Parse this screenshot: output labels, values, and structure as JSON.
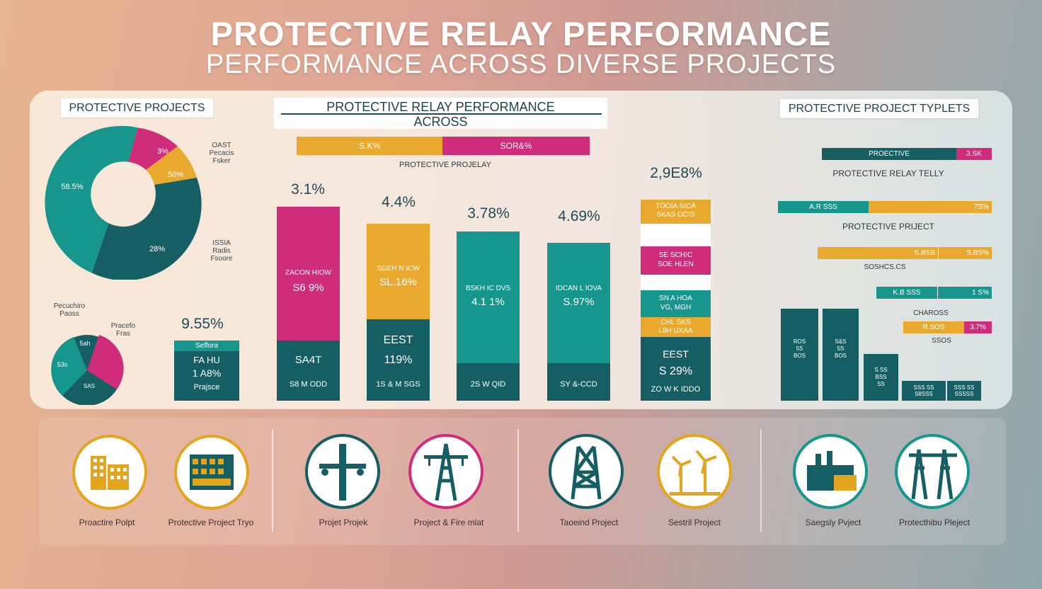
{
  "title": "PROTECTIVE RELAY PERFORMANCE",
  "subtitle": "PERFORMANCE ACROSS DIVERSE PROJECTS",
  "colors": {
    "teal": "#16968c",
    "dark_teal": "#155e64",
    "magenta": "#cf2d7b",
    "mustard": "#e8a92e"
  },
  "left": {
    "header": "PROTECTIVE PROJECTS",
    "donut_labels": {
      "slice1": "58.5%",
      "slice2": "3%",
      "slice3": "50%",
      "slice4": "28%"
    },
    "legend_top": [
      "OAST",
      "Pecacis",
      "Fsker"
    ],
    "legend_bottom": [
      "ISSIA",
      "Radis",
      "Fsoore"
    ],
    "pie_label_left": [
      "Pecuchiro",
      "Paoss"
    ],
    "pie_label_right": [
      "Pracefo",
      "Fras"
    ],
    "small_pie_labels": {
      "slice1": "5ah",
      "slice2": "53s",
      "slice3": "SAS"
    },
    "small_card": {
      "value": "9.55%",
      "head": "Seffora",
      "line1": "FA HU",
      "line2": "1 A8%",
      "footer": "Prajsce"
    }
  },
  "middle": {
    "header_line1": "PROTECTIVE RELAY PERFORMANCE",
    "header_line2": "ACROSS",
    "strip_left": "S.K%",
    "strip_right": "SOR&%",
    "strip_caption": "PROTECTIVE PROJELAY",
    "bars": [
      {
        "value_label": "3.1%",
        "color": "magenta",
        "mid1": "ZACON HIOW",
        "mid2": "S6 9%",
        "bottom1": "SA4T",
        "bottom2": "",
        "foot": "S8 M ODD"
      },
      {
        "value_label": "4.4%",
        "color": "mustard",
        "mid1": "SGEH N ICW",
        "mid2": "SL.16%",
        "bottom1": "EEST",
        "bottom2": "119%",
        "foot": "1S & M SGS"
      },
      {
        "value_label": "3.78%",
        "color": "teal",
        "mid1": "BSKH IC DVS",
        "mid2": "4.1 1%",
        "bottom1": "",
        "bottom2": "",
        "foot": "2S W QID"
      },
      {
        "value_label": "4.69%",
        "color": "teal",
        "mid1": "IDCAN L IOVA",
        "mid2": "S.97%",
        "bottom1": "",
        "bottom2": "",
        "foot": "SY &-CCD"
      }
    ],
    "stacked": {
      "value_label": "2,9E8%",
      "seg1": [
        "TOOIA SICA",
        "SKAS OCIS"
      ],
      "seg2": [
        "SE SCHIC",
        "SOE HLEN"
      ],
      "seg3": [
        "SN A HOA",
        "VG, MGH"
      ],
      "seg4": [
        "CHL SKS",
        "L8H UXAA"
      ],
      "bottom1": "EEST",
      "bottom2": "S 29%",
      "foot": "ZO W K IDDO"
    }
  },
  "right": {
    "header": "PROTECTIVE PROJECT TYPLETS",
    "hbar1": {
      "label": "PROECTIVE",
      "pct": "3.SK"
    },
    "caption1": "PROTECTIVE RELAY TELLY",
    "hbar2": {
      "label": "A.R SSS",
      "pct": "7S%"
    },
    "caption2": "PROTECTIVE PRIJECT",
    "hbar3": {
      "label": "S.BSB",
      "pct": "S.BS%"
    },
    "caption3": "SOSHCS.CS",
    "hbar4": {
      "label": "K.B SSS",
      "pct": "1 S%"
    },
    "caption4": "CHAROSS",
    "hbar5": {
      "label": "R.SOS",
      "pct": "3.7%"
    },
    "caption5": "SSOS",
    "column_labels": [
      [
        "ROS",
        "5S",
        "BOS"
      ],
      [
        "S&S",
        "5S",
        "BOS"
      ],
      [
        "S SS",
        "BSS",
        "SS"
      ],
      [
        "SSS SS",
        "S8SSS"
      ],
      [
        "SSS SS",
        "SSSSS"
      ]
    ]
  },
  "icons": [
    {
      "label": "Proactire Polpt",
      "icon": "building-icon",
      "color": "#e3a51d"
    },
    {
      "label": "Protective Project Tryo",
      "icon": "substation-icon",
      "color": "#e3a51d"
    },
    {
      "label": "Projet Projek",
      "icon": "pole-icon",
      "color": "#155e64"
    },
    {
      "label": "Project & Fire mlat",
      "icon": "transmission-tower-icon",
      "color": "#cf2d7b"
    },
    {
      "label": "Taoeind Project",
      "icon": "tower-icon",
      "color": "#155e64"
    },
    {
      "label": "Sestril Project",
      "icon": "wind-turbine-icon",
      "color": "#e3a51d"
    },
    {
      "label": "Saegsly Pvject",
      "icon": "power-plant-icon",
      "color": "#155e64"
    },
    {
      "label": "Protecthibu Pleject",
      "icon": "pylons-icon",
      "color": "#155e64"
    }
  ]
}
